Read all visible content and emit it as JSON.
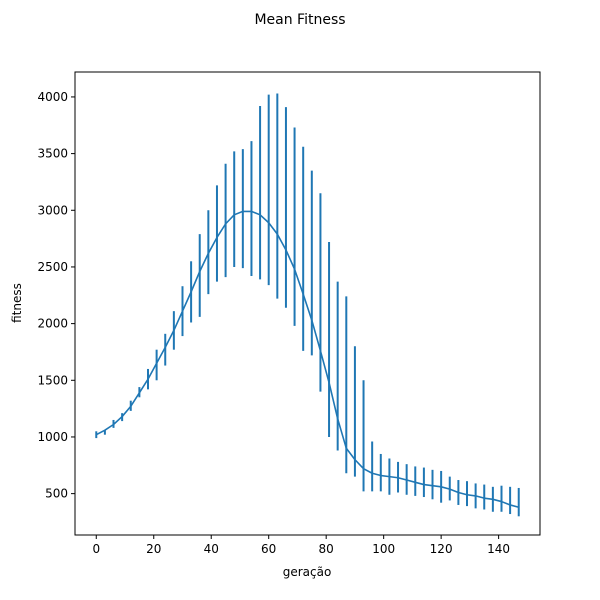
{
  "chart_data": {
    "type": "line",
    "title": "Mean Fitness",
    "xlabel": "geração",
    "ylabel": "fitness",
    "xlim": [
      -7.4,
      154.4
    ],
    "ylim": [
      135,
      4220
    ],
    "xticks": [
      0,
      20,
      40,
      60,
      80,
      100,
      120,
      140
    ],
    "yticks": [
      500,
      1000,
      1500,
      2000,
      2500,
      3000,
      3500,
      4000
    ],
    "grid": false,
    "color": "#1f77b4",
    "series": [
      {
        "x": [
          0,
          3,
          6,
          9,
          12,
          15,
          18,
          21,
          24,
          27,
          30,
          33,
          36,
          39,
          42,
          45,
          48,
          51,
          54,
          57,
          60,
          63,
          66,
          69,
          72,
          75,
          78,
          81,
          84,
          87,
          90,
          93,
          96,
          99,
          102,
          105,
          108,
          111,
          114,
          117,
          120,
          123,
          126,
          129,
          132,
          135,
          138,
          141,
          144,
          147
        ],
        "y": [
          1020,
          1060,
          1110,
          1180,
          1270,
          1390,
          1510,
          1650,
          1790,
          1940,
          2110,
          2280,
          2460,
          2620,
          2760,
          2880,
          2960,
          2990,
          2990,
          2960,
          2890,
          2790,
          2650,
          2480,
          2260,
          2030,
          1760,
          1480,
          1160,
          900,
          800,
          720,
          680,
          660,
          650,
          640,
          620,
          600,
          580,
          570,
          560,
          540,
          510,
          490,
          480,
          460,
          450,
          430,
          400,
          380
        ],
        "err": [
          40,
          40,
          40,
          40,
          40,
          40,
          40,
          40,
          40,
          40,
          40,
          40,
          40,
          40,
          40,
          40,
          40,
          40,
          40,
          40,
          40,
          40,
          40,
          40,
          40,
          40,
          40,
          40,
          40,
          40,
          40,
          40,
          40,
          40,
          40,
          40,
          40,
          40,
          40,
          40,
          40,
          40,
          40,
          40,
          40,
          40,
          40,
          40,
          40,
          40
        ],
        "errbars": {
          "x": [
            0,
            3,
            6,
            9,
            12,
            15,
            18,
            21,
            24,
            27,
            30,
            33,
            36,
            39,
            42,
            45,
            48,
            51,
            54,
            57,
            60,
            63,
            66,
            69,
            72,
            75,
            78,
            81,
            84,
            87,
            90,
            93,
            96,
            99,
            102,
            105,
            108,
            111,
            114,
            117,
            120,
            123,
            126,
            129,
            132,
            135,
            138,
            141,
            144,
            147
          ],
          "low": [
            990,
            1020,
            1080,
            1140,
            1230,
            1350,
            1420,
            1500,
            1630,
            1770,
            1890,
            2010,
            2060,
            2260,
            2370,
            2410,
            2500,
            2490,
            2420,
            2390,
            2340,
            2220,
            2140,
            1980,
            1760,
            1720,
            1400,
            1000,
            880,
            680,
            650,
            520,
            520,
            520,
            490,
            510,
            490,
            480,
            470,
            450,
            420,
            440,
            400,
            390,
            370,
            360,
            340,
            340,
            320,
            300
          ],
          "high": [
            1050,
            1060,
            1150,
            1210,
            1320,
            1440,
            1600,
            1770,
            1910,
            2110,
            2330,
            2550,
            2790,
            3000,
            3220,
            3410,
            3520,
            3540,
            3610,
            3920,
            4020,
            4030,
            3910,
            3730,
            3560,
            3350,
            3150,
            2720,
            2370,
            2240,
            1800,
            1500,
            960,
            850,
            810,
            780,
            760,
            740,
            730,
            710,
            700,
            650,
            620,
            610,
            590,
            580,
            560,
            570,
            560,
            550
          ]
        }
      }
    ]
  }
}
